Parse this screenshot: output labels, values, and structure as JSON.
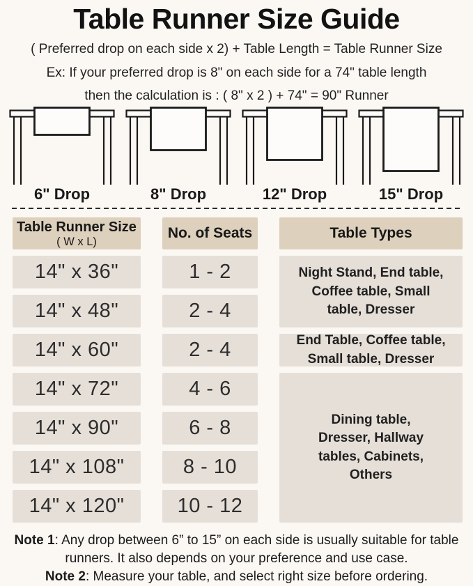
{
  "title": "Table Runner Size Guide",
  "formula": "( Preferred drop on each side x 2) + Table Length = Table Runner Size",
  "example": {
    "line1": "Ex: If your preferred drop is 8\" on each side for a 74\" table length",
    "line2": "then the calculation is : ( 8\" x 2 ) + 74\" = 90\" Runner"
  },
  "drops": [
    {
      "label": "6\" Drop",
      "inches": 6
    },
    {
      "label": "8\" Drop",
      "inches": 8
    },
    {
      "label": "12\" Drop",
      "inches": 12
    },
    {
      "label": "15\" Drop",
      "inches": 15
    }
  ],
  "table": {
    "headers": {
      "size_title": "Table Runner Size",
      "size_sub": "( W x L)",
      "seats": "No. of Seats",
      "types": "Table Types"
    },
    "rows": [
      {
        "size": "14\" x 36\"",
        "seats": "1 - 2"
      },
      {
        "size": "14\" x 48\"",
        "seats": "2 - 4"
      },
      {
        "size": "14\" x 60\"",
        "seats": "2 - 4"
      },
      {
        "size": "14\" x 72\"",
        "seats": "4 - 6"
      },
      {
        "size": "14\" x 90\"",
        "seats": "6 - 8"
      },
      {
        "size": "14\" x 108\"",
        "seats": "8 - 10"
      },
      {
        "size": "14\" x 120\"",
        "seats": "10 - 12"
      }
    ],
    "type_groups": [
      {
        "text": "Night Stand, End table, Coffee table, Small table, Dresser",
        "rows_spanned": 2
      },
      {
        "text": "End Table, Coffee table, Small table, Dresser",
        "rows_spanned": 1
      },
      {
        "text": "Dining table, Dresser, Hallway tables, Cabinets, Others",
        "rows_spanned": 4
      }
    ]
  },
  "notes": [
    {
      "label": "Note 1",
      "text": ": Any drop between 6” to 15” on each side is usually suitable for table runners. It also depends on your preference and use case."
    },
    {
      "label": "Note 2",
      "text": ": Measure your table, and select right size before ordering."
    }
  ],
  "colors": {
    "page-bg": "#fbf8f4",
    "header-bg": "#ddd0bc",
    "cell-bg": "#e6dfd8",
    "ink": "#1d1d1d",
    "line": "#1c1c1c"
  }
}
